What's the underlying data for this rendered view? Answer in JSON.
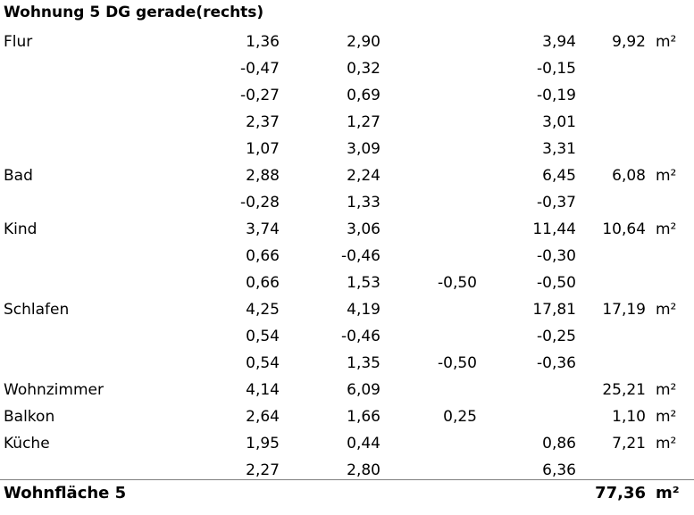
{
  "title": "Wohnung 5 DG gerade(rechts)",
  "rows": [
    {
      "label": "Flur",
      "a": "1,36",
      "b": "2,90",
      "c": "",
      "d": "3,94",
      "e": "9,92",
      "unit": "m²"
    },
    {
      "label": "",
      "a": "-0,47",
      "b": "0,32",
      "c": "",
      "d": "-0,15",
      "e": "",
      "unit": ""
    },
    {
      "label": "",
      "a": "-0,27",
      "b": "0,69",
      "c": "",
      "d": "-0,19",
      "e": "",
      "unit": ""
    },
    {
      "label": "",
      "a": "2,37",
      "b": "1,27",
      "c": "",
      "d": "3,01",
      "e": "",
      "unit": ""
    },
    {
      "label": "",
      "a": "1,07",
      "b": "3,09",
      "c": "",
      "d": "3,31",
      "e": "",
      "unit": ""
    },
    {
      "label": "Bad",
      "a": "2,88",
      "b": "2,24",
      "c": "",
      "d": "6,45",
      "e": "6,08",
      "unit": "m²"
    },
    {
      "label": "",
      "a": "-0,28",
      "b": "1,33",
      "c": "",
      "d": "-0,37",
      "e": "",
      "unit": ""
    },
    {
      "label": "Kind",
      "a": "3,74",
      "b": "3,06",
      "c": "",
      "d": "11,44",
      "e": "10,64",
      "unit": "m²"
    },
    {
      "label": "",
      "a": "0,66",
      "b": "-0,46",
      "c": "",
      "d": "-0,30",
      "e": "",
      "unit": ""
    },
    {
      "label": "",
      "a": "0,66",
      "b": "1,53",
      "c": "-0,50",
      "d": "-0,50",
      "e": "",
      "unit": ""
    },
    {
      "label": "Schlafen",
      "a": "4,25",
      "b": "4,19",
      "c": "",
      "d": "17,81",
      "e": "17,19",
      "unit": "m²"
    },
    {
      "label": "",
      "a": "0,54",
      "b": "-0,46",
      "c": "",
      "d": "-0,25",
      "e": "",
      "unit": ""
    },
    {
      "label": "",
      "a": "0,54",
      "b": "1,35",
      "c": "-0,50",
      "d": "-0,36",
      "e": "",
      "unit": ""
    },
    {
      "label": "Wohnzimmer",
      "a": "4,14",
      "b": "6,09",
      "c": "",
      "d": "",
      "e": "25,21",
      "unit": "m²"
    },
    {
      "label": "Balkon",
      "a": "2,64",
      "b": "1,66",
      "c": "0,25",
      "d": "",
      "e": "1,10",
      "unit": "m²"
    },
    {
      "label": "Küche",
      "a": "1,95",
      "b": "0,44",
      "c": "",
      "d": "0,86",
      "e": "7,21",
      "unit": "m²"
    },
    {
      "label": "",
      "a": "2,27",
      "b": "2,80",
      "c": "",
      "d": "6,36",
      "e": "",
      "unit": ""
    }
  ],
  "total": {
    "label": "Wohnfläche 5",
    "value": "77,36",
    "unit": "m²"
  }
}
